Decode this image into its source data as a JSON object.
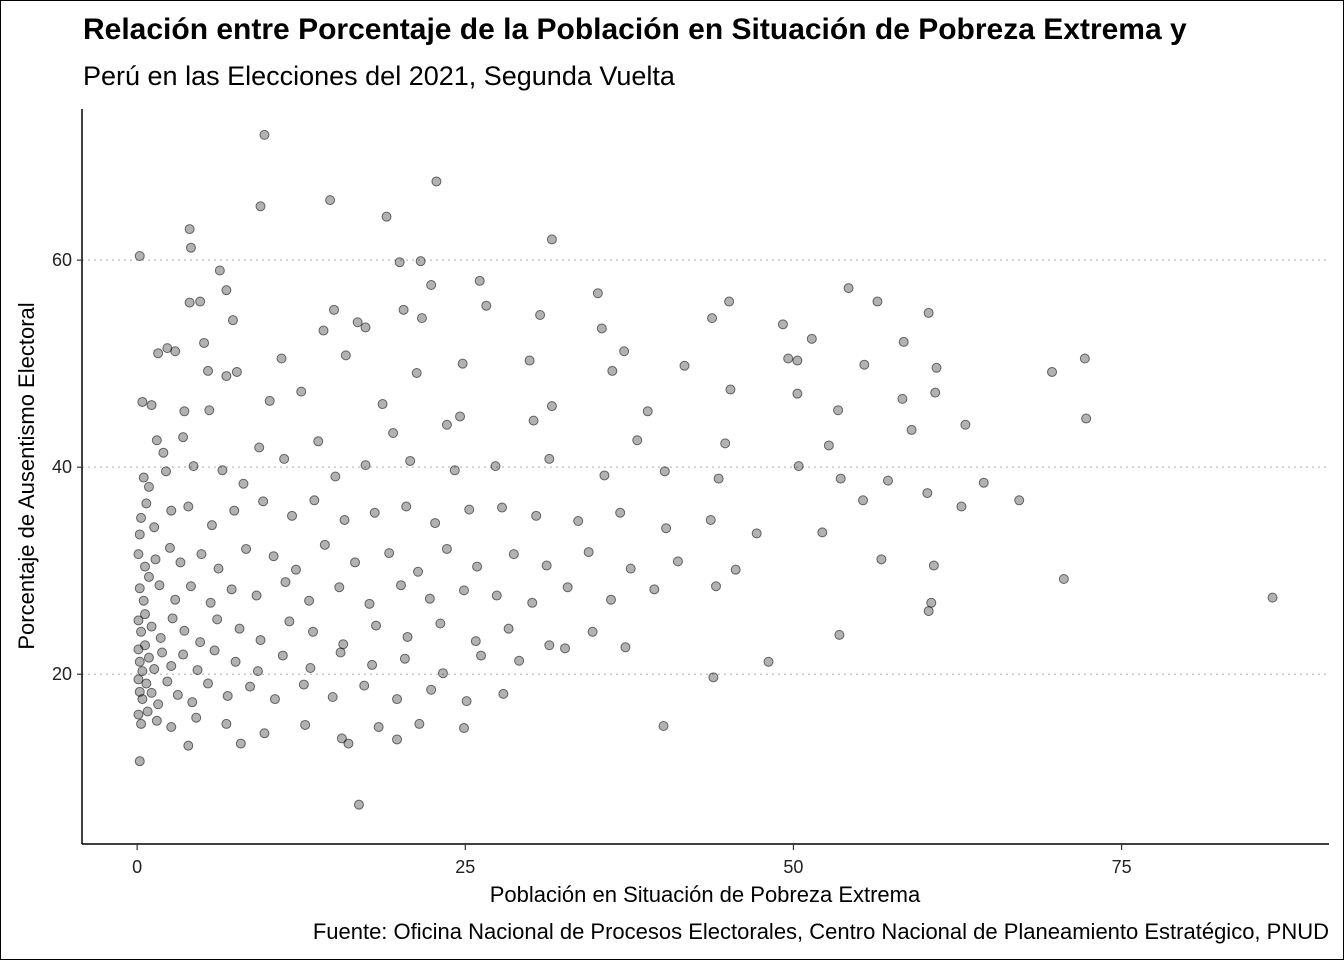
{
  "chart_data": {
    "type": "scatter",
    "title": "Relación entre Porcentaje de la Población en Situación de Pobreza Extrema y",
    "subtitle": "Perú en las Elecciones del 2021, Segunda Vuelta",
    "xlabel": "Población en Situación de Pobreza Extrema",
    "ylabel": "Porcentaje de Ausentismo Electoral",
    "caption": "Fuente: Oficina Nacional de Procesos Electorales, Centro Nacional de Planeamiento Estratégico, PNUD",
    "xlim": [
      -4.2,
      90.8
    ],
    "ylim": [
      3.6,
      74.6
    ],
    "x_ticks": [
      0,
      25,
      50,
      75
    ],
    "y_ticks": [
      20,
      40,
      60
    ],
    "grid": "horizontal-dotted",
    "point_color": "#000000",
    "point_opacity": 0.3,
    "points": [
      [
        0.2,
        60.4
      ],
      [
        9.7,
        72.1
      ],
      [
        22.8,
        67.6
      ],
      [
        9.4,
        65.2
      ],
      [
        14.7,
        65.8
      ],
      [
        19,
        64.2
      ],
      [
        4,
        63
      ],
      [
        4.1,
        61.2
      ],
      [
        31.6,
        62
      ],
      [
        20,
        59.8
      ],
      [
        21.6,
        59.9
      ],
      [
        6.3,
        59
      ],
      [
        22.4,
        57.6
      ],
      [
        26.1,
        58
      ],
      [
        6.8,
        57.1
      ],
      [
        35.1,
        56.8
      ],
      [
        54.2,
        57.3
      ],
      [
        4,
        55.9
      ],
      [
        4.8,
        56
      ],
      [
        56.4,
        56
      ],
      [
        45.1,
        56
      ],
      [
        60.3,
        54.9
      ],
      [
        15,
        55.2
      ],
      [
        20.3,
        55.2
      ],
      [
        26.6,
        55.6
      ],
      [
        30.7,
        54.7
      ],
      [
        7.3,
        54.2
      ],
      [
        16.8,
        54
      ],
      [
        21.7,
        54.4
      ],
      [
        43.8,
        54.4
      ],
      [
        49.2,
        53.8
      ],
      [
        14.2,
        53.2
      ],
      [
        17.4,
        53.5
      ],
      [
        35.4,
        53.4
      ],
      [
        5.1,
        52
      ],
      [
        51.4,
        52.4
      ],
      [
        1.6,
        51
      ],
      [
        2.3,
        51.5
      ],
      [
        2.9,
        51.2
      ],
      [
        15.9,
        50.8
      ],
      [
        24.8,
        50
      ],
      [
        37.1,
        51.2
      ],
      [
        41.7,
        49.8
      ],
      [
        58.4,
        52.1
      ],
      [
        72.2,
        50.5
      ],
      [
        69.7,
        49.2
      ],
      [
        60.9,
        49.6
      ],
      [
        50.3,
        50.3
      ],
      [
        49.6,
        50.5
      ],
      [
        55.4,
        49.9
      ],
      [
        11,
        50.5
      ],
      [
        5.4,
        49.3
      ],
      [
        7.6,
        49.2
      ],
      [
        6.8,
        48.8
      ],
      [
        21.3,
        49.1
      ],
      [
        29.9,
        50.3
      ],
      [
        36.2,
        49.3
      ],
      [
        0.4,
        46.3
      ],
      [
        1.1,
        46
      ],
      [
        3.6,
        45.4
      ],
      [
        5.5,
        45.5
      ],
      [
        10.1,
        46.4
      ],
      [
        12.5,
        47.3
      ],
      [
        18.7,
        46.1
      ],
      [
        24.6,
        44.9
      ],
      [
        31.6,
        45.9
      ],
      [
        38.9,
        45.4
      ],
      [
        45.2,
        47.5
      ],
      [
        50.3,
        47.1
      ],
      [
        53.4,
        45.5
      ],
      [
        58.3,
        46.6
      ],
      [
        60.8,
        47.2
      ],
      [
        1.5,
        42.6
      ],
      [
        3.5,
        42.9
      ],
      [
        2,
        41.4
      ],
      [
        9.3,
        41.9
      ],
      [
        13.8,
        42.5
      ],
      [
        19.5,
        43.3
      ],
      [
        23.6,
        44.1
      ],
      [
        30.2,
        44.5
      ],
      [
        38.1,
        42.6
      ],
      [
        44.8,
        42.3
      ],
      [
        52.7,
        42.1
      ],
      [
        59,
        43.6
      ],
      [
        63.1,
        44.1
      ],
      [
        72.3,
        44.7
      ],
      [
        0.5,
        39
      ],
      [
        0.9,
        38.1
      ],
      [
        2.2,
        39.6
      ],
      [
        4.3,
        40.1
      ],
      [
        6.5,
        39.7
      ],
      [
        8.1,
        38.4
      ],
      [
        11.2,
        40.8
      ],
      [
        15.1,
        39.1
      ],
      [
        17.4,
        40.2
      ],
      [
        20.8,
        40.6
      ],
      [
        24.2,
        39.7
      ],
      [
        27.3,
        40.1
      ],
      [
        31.4,
        40.8
      ],
      [
        35.6,
        39.2
      ],
      [
        40.2,
        39.6
      ],
      [
        44.3,
        38.9
      ],
      [
        50.4,
        40.1
      ],
      [
        53.6,
        38.9
      ],
      [
        57.2,
        38.7
      ],
      [
        60.2,
        37.5
      ],
      [
        64.5,
        38.5
      ],
      [
        0.3,
        35.1
      ],
      [
        0.2,
        33.5
      ],
      [
        0.7,
        36.5
      ],
      [
        1.3,
        34.2
      ],
      [
        2.6,
        35.8
      ],
      [
        3.9,
        36.2
      ],
      [
        5.7,
        34.4
      ],
      [
        7.4,
        35.8
      ],
      [
        9.6,
        36.7
      ],
      [
        11.8,
        35.3
      ],
      [
        13.5,
        36.8
      ],
      [
        15.8,
        34.9
      ],
      [
        18.1,
        35.6
      ],
      [
        20.5,
        36.2
      ],
      [
        22.7,
        34.6
      ],
      [
        25.3,
        35.9
      ],
      [
        27.8,
        36.1
      ],
      [
        30.4,
        35.3
      ],
      [
        33.6,
        34.8
      ],
      [
        36.8,
        35.6
      ],
      [
        40.3,
        34.1
      ],
      [
        43.7,
        34.9
      ],
      [
        47.2,
        33.6
      ],
      [
        52.2,
        33.7
      ],
      [
        55.3,
        36.8
      ],
      [
        62.8,
        36.2
      ],
      [
        67.2,
        36.8
      ],
      [
        0.1,
        31.6
      ],
      [
        0.6,
        30.4
      ],
      [
        1.4,
        31.1
      ],
      [
        2.5,
        32.2
      ],
      [
        3.3,
        30.8
      ],
      [
        4.9,
        31.6
      ],
      [
        6.2,
        30.2
      ],
      [
        8.3,
        32.1
      ],
      [
        10.4,
        31.4
      ],
      [
        12.1,
        30.1
      ],
      [
        14.3,
        32.5
      ],
      [
        16.6,
        30.8
      ],
      [
        19.2,
        31.7
      ],
      [
        21.4,
        29.9
      ],
      [
        23.6,
        32.1
      ],
      [
        25.9,
        30.4
      ],
      [
        28.7,
        31.6
      ],
      [
        31.2,
        30.5
      ],
      [
        34.4,
        31.8
      ],
      [
        37.6,
        30.2
      ],
      [
        41.2,
        30.9
      ],
      [
        45.6,
        30.1
      ],
      [
        56.7,
        31.1
      ],
      [
        0.2,
        28.3
      ],
      [
        0.5,
        27.1
      ],
      [
        0.9,
        29.4
      ],
      [
        1.7,
        28.6
      ],
      [
        2.9,
        27.2
      ],
      [
        4.1,
        28.5
      ],
      [
        5.6,
        26.9
      ],
      [
        7.2,
        28.2
      ],
      [
        9.1,
        27.6
      ],
      [
        11.3,
        28.9
      ],
      [
        13.1,
        27.1
      ],
      [
        15.4,
        28.4
      ],
      [
        17.7,
        26.8
      ],
      [
        20.1,
        28.6
      ],
      [
        22.3,
        27.3
      ],
      [
        24.9,
        28.1
      ],
      [
        27.4,
        27.6
      ],
      [
        30.1,
        26.9
      ],
      [
        32.8,
        28.4
      ],
      [
        36.1,
        27.2
      ],
      [
        39.4,
        28.2
      ],
      [
        44.1,
        28.5
      ],
      [
        60.7,
        30.5
      ],
      [
        70.6,
        29.2
      ],
      [
        86.5,
        27.4
      ],
      [
        0.1,
        25.2
      ],
      [
        0.3,
        24.1
      ],
      [
        0.6,
        25.8
      ],
      [
        1.1,
        24.6
      ],
      [
        1.8,
        23.5
      ],
      [
        2.7,
        25.4
      ],
      [
        3.6,
        24.2
      ],
      [
        4.8,
        23.1
      ],
      [
        6.1,
        25.3
      ],
      [
        7.8,
        24.4
      ],
      [
        9.4,
        23.3
      ],
      [
        11.6,
        25.1
      ],
      [
        13.4,
        24.1
      ],
      [
        15.7,
        22.9
      ],
      [
        18.2,
        24.7
      ],
      [
        20.6,
        23.6
      ],
      [
        23.1,
        24.9
      ],
      [
        25.8,
        23.2
      ],
      [
        28.3,
        24.4
      ],
      [
        31.4,
        22.8
      ],
      [
        34.7,
        24.1
      ],
      [
        37.2,
        22.6
      ],
      [
        60.3,
        26.1
      ],
      [
        60.5,
        26.9
      ],
      [
        0.1,
        22.4
      ],
      [
        0.2,
        21.2
      ],
      [
        0.4,
        20.3
      ],
      [
        0.6,
        22.8
      ],
      [
        0.9,
        21.6
      ],
      [
        1.3,
        20.5
      ],
      [
        1.9,
        22.1
      ],
      [
        2.6,
        20.8
      ],
      [
        3.5,
        21.9
      ],
      [
        4.6,
        20.4
      ],
      [
        5.9,
        22.3
      ],
      [
        7.5,
        21.2
      ],
      [
        9.2,
        20.3
      ],
      [
        11.1,
        21.8
      ],
      [
        13.2,
        20.6
      ],
      [
        15.5,
        22.1
      ],
      [
        17.9,
        20.9
      ],
      [
        20.4,
        21.5
      ],
      [
        23.3,
        20.1
      ],
      [
        26.2,
        21.8
      ],
      [
        29.1,
        21.3
      ],
      [
        32.6,
        22.5
      ],
      [
        0.1,
        19.5
      ],
      [
        0.2,
        18.3
      ],
      [
        0.4,
        17.6
      ],
      [
        0.7,
        19.1
      ],
      [
        1.1,
        18.2
      ],
      [
        1.6,
        17.1
      ],
      [
        2.3,
        19.3
      ],
      [
        3.1,
        18
      ],
      [
        4.2,
        17.3
      ],
      [
        5.4,
        19.1
      ],
      [
        6.9,
        17.9
      ],
      [
        8.6,
        18.8
      ],
      [
        10.5,
        17.6
      ],
      [
        12.7,
        19
      ],
      [
        14.9,
        17.8
      ],
      [
        17.3,
        18.9
      ],
      [
        19.8,
        17.6
      ],
      [
        22.4,
        18.5
      ],
      [
        25.1,
        17.4
      ],
      [
        27.9,
        18.1
      ],
      [
        0.1,
        16.1
      ],
      [
        0.3,
        15.2
      ],
      [
        0.8,
        16.4
      ],
      [
        1.5,
        15.5
      ],
      [
        2.6,
        14.9
      ],
      [
        4.5,
        15.8
      ],
      [
        6.8,
        15.2
      ],
      [
        9.7,
        14.3
      ],
      [
        12.8,
        15.1
      ],
      [
        15.6,
        13.8
      ],
      [
        18.4,
        14.9
      ],
      [
        21.5,
        15.2
      ],
      [
        24.9,
        14.8
      ],
      [
        0.2,
        11.6
      ],
      [
        3.9,
        13.1
      ],
      [
        7.9,
        13.3
      ],
      [
        16.1,
        13.3
      ],
      [
        19.8,
        13.7
      ],
      [
        40.1,
        15
      ],
      [
        16.9,
        7.4
      ],
      [
        43.9,
        19.7
      ],
      [
        48.1,
        21.2
      ],
      [
        53.5,
        23.8
      ]
    ]
  }
}
